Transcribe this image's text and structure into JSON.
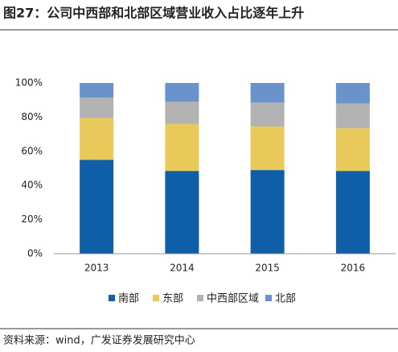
{
  "chart_data": {
    "type": "stacked-bar",
    "title": "图27：公司中西部和北部区域营业收入占比逐年上升",
    "categories": [
      "2013",
      "2014",
      "2015",
      "2016"
    ],
    "series": [
      {
        "name": "南部",
        "color": "#0f5fa8",
        "values": [
          55,
          48.5,
          49,
          48.5
        ]
      },
      {
        "name": "东部",
        "color": "#e8c95a",
        "values": [
          24.5,
          27.5,
          25.5,
          25
        ]
      },
      {
        "name": "中西部区域",
        "color": "#b2b2b2",
        "values": [
          12,
          13,
          14,
          14.5
        ]
      },
      {
        "name": "北部",
        "color": "#6b93cb",
        "values": [
          8.5,
          11,
          11.5,
          12
        ]
      }
    ],
    "ylim": [
      0,
      100
    ],
    "yticks": [
      {
        "value": 0,
        "label": "0%"
      },
      {
        "value": 20,
        "label": "20%"
      },
      {
        "value": 40,
        "label": "40%"
      },
      {
        "value": 60,
        "label": "60%"
      },
      {
        "value": 80,
        "label": "80%"
      },
      {
        "value": 100,
        "label": "100%"
      }
    ],
    "grid": false,
    "legend": "bottom"
  },
  "source": "资料来源：wind，广发证券发展研究中心"
}
